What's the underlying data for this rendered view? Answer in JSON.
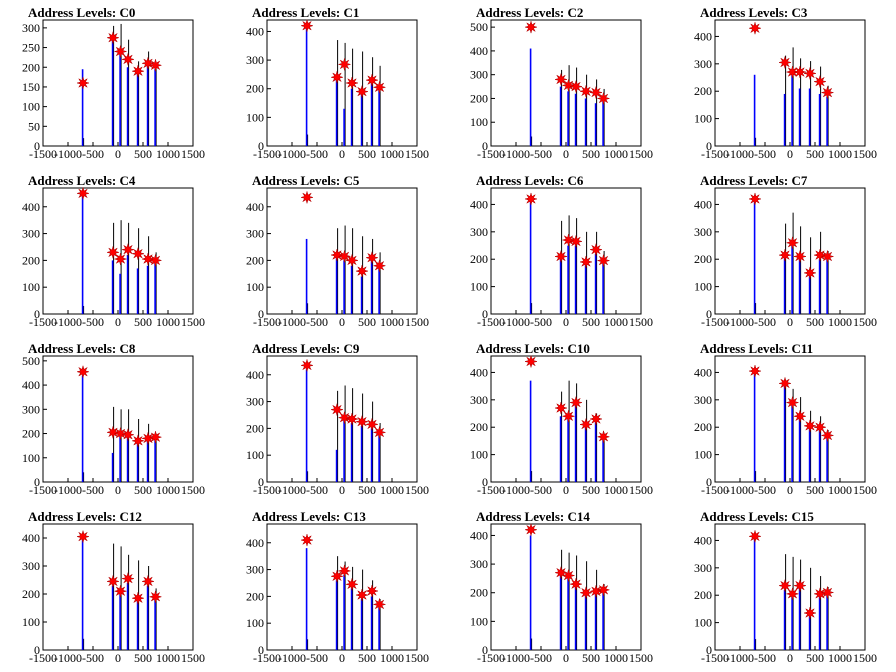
{
  "colors": {
    "histogram": "#0000ff",
    "overlay": "#000000",
    "peak_marker": "#ff0000"
  },
  "xlim": [
    -1500,
    1500
  ],
  "x_tick_labels": [
    "-1500",
    "-1000",
    "-500",
    "0",
    "500",
    "1000",
    "1500"
  ],
  "marker_x": [
    -700,
    -100,
    50,
    200,
    400,
    600,
    750
  ],
  "chart_data": [
    {
      "type": "bar",
      "title": "Address Levels: C0",
      "ylim": [
        0,
        320
      ],
      "y_ticks": [
        0,
        50,
        100,
        150,
        200,
        250,
        300
      ],
      "peaks_y": [
        160,
        275,
        240,
        220,
        190,
        210,
        205
      ],
      "blue_heights": [
        195,
        270,
        240,
        200,
        190,
        205,
        195
      ],
      "black_heights": [
        20,
        305,
        310,
        270,
        215,
        240,
        210
      ]
    },
    {
      "type": "bar",
      "title": "Address Levels: C1",
      "ylim": [
        0,
        440
      ],
      "y_ticks": [
        0,
        100,
        200,
        300,
        400
      ],
      "peaks_y": [
        420,
        240,
        285,
        220,
        190,
        230,
        205
      ],
      "blue_heights": [
        430,
        240,
        130,
        200,
        180,
        220,
        200
      ],
      "black_heights": [
        40,
        370,
        360,
        340,
        330,
        310,
        280
      ]
    },
    {
      "type": "bar",
      "title": "Address Levels: C2",
      "ylim": [
        0,
        530
      ],
      "y_ticks": [
        0,
        100,
        200,
        300,
        400,
        500
      ],
      "peaks_y": [
        500,
        280,
        255,
        250,
        230,
        225,
        200
      ],
      "blue_heights": [
        410,
        250,
        230,
        220,
        200,
        180,
        190
      ],
      "black_heights": [
        40,
        320,
        340,
        330,
        300,
        280,
        240
      ]
    },
    {
      "type": "bar",
      "title": "Address Levels: C3",
      "ylim": [
        0,
        460
      ],
      "y_ticks": [
        0,
        100,
        200,
        300,
        400
      ],
      "peaks_y": [
        430,
        305,
        270,
        270,
        265,
        235,
        195
      ],
      "blue_heights": [
        260,
        190,
        280,
        210,
        210,
        190,
        180
      ],
      "black_heights": [
        30,
        330,
        360,
        320,
        310,
        290,
        220
      ]
    },
    {
      "type": "bar",
      "title": "Address Levels: C4",
      "ylim": [
        0,
        470
      ],
      "y_ticks": [
        0,
        100,
        200,
        300,
        400
      ],
      "peaks_y": [
        450,
        230,
        205,
        240,
        225,
        205,
        200
      ],
      "blue_heights": [
        440,
        200,
        150,
        220,
        170,
        180,
        190
      ],
      "black_heights": [
        30,
        340,
        350,
        340,
        320,
        290,
        230
      ]
    },
    {
      "type": "bar",
      "title": "Address Levels: C5",
      "ylim": [
        0,
        470
      ],
      "y_ticks": [
        0,
        100,
        200,
        300,
        400
      ],
      "peaks_y": [
        435,
        220,
        215,
        200,
        160,
        210,
        180
      ],
      "blue_heights": [
        280,
        210,
        200,
        180,
        140,
        200,
        170
      ],
      "black_heights": [
        40,
        320,
        330,
        320,
        290,
        280,
        230
      ]
    },
    {
      "type": "bar",
      "title": "Address Levels: C6",
      "ylim": [
        0,
        460
      ],
      "y_ticks": [
        0,
        100,
        200,
        300,
        400
      ],
      "peaks_y": [
        420,
        210,
        270,
        265,
        190,
        235,
        195
      ],
      "blue_heights": [
        410,
        200,
        250,
        250,
        180,
        220,
        190
      ],
      "black_heights": [
        40,
        340,
        360,
        350,
        300,
        300,
        230
      ]
    },
    {
      "type": "bar",
      "title": "Address Levels: C7",
      "ylim": [
        0,
        460
      ],
      "y_ticks": [
        0,
        100,
        200,
        300,
        400
      ],
      "peaks_y": [
        420,
        215,
        260,
        210,
        150,
        215,
        210
      ],
      "blue_heights": [
        410,
        210,
        250,
        200,
        140,
        200,
        200
      ],
      "black_heights": [
        40,
        330,
        370,
        320,
        280,
        300,
        230
      ]
    },
    {
      "type": "bar",
      "title": "Address Levels: C8",
      "ylim": [
        0,
        520
      ],
      "y_ticks": [
        0,
        100,
        200,
        300,
        400,
        500
      ],
      "peaks_y": [
        455,
        205,
        200,
        195,
        170,
        180,
        185
      ],
      "blue_heights": [
        440,
        120,
        200,
        190,
        160,
        170,
        175
      ],
      "black_heights": [
        40,
        310,
        300,
        300,
        260,
        240,
        200
      ]
    },
    {
      "type": "bar",
      "title": "Address Levels: C9",
      "ylim": [
        0,
        470
      ],
      "y_ticks": [
        0,
        100,
        200,
        300,
        400
      ],
      "peaks_y": [
        435,
        270,
        240,
        235,
        225,
        215,
        185
      ],
      "blue_heights": [
        420,
        120,
        230,
        220,
        210,
        200,
        180
      ],
      "black_heights": [
        40,
        340,
        360,
        350,
        330,
        300,
        220
      ]
    },
    {
      "type": "bar",
      "title": "Address Levels: C10",
      "ylim": [
        0,
        460
      ],
      "y_ticks": [
        0,
        100,
        200,
        300,
        400
      ],
      "peaks_y": [
        440,
        270,
        240,
        290,
        210,
        230,
        165
      ],
      "blue_heights": [
        370,
        240,
        230,
        280,
        200,
        220,
        160
      ],
      "black_heights": [
        40,
        330,
        370,
        360,
        300,
        250,
        180
      ]
    },
    {
      "type": "bar",
      "title": "Address Levels: C11",
      "ylim": [
        0,
        460
      ],
      "y_ticks": [
        0,
        100,
        200,
        300,
        400
      ],
      "peaks_y": [
        405,
        360,
        290,
        240,
        205,
        200,
        170
      ],
      "blue_heights": [
        400,
        350,
        280,
        230,
        200,
        190,
        160
      ],
      "black_heights": [
        40,
        370,
        340,
        310,
        260,
        240,
        190
      ]
    },
    {
      "type": "bar",
      "title": "Address Levels: C12",
      "ylim": [
        0,
        450
      ],
      "y_ticks": [
        0,
        100,
        200,
        300,
        400
      ],
      "peaks_y": [
        405,
        245,
        210,
        255,
        185,
        245,
        190
      ],
      "blue_heights": [
        410,
        230,
        200,
        240,
        180,
        230,
        180
      ],
      "black_heights": [
        40,
        380,
        370,
        340,
        320,
        300,
        220
      ]
    },
    {
      "type": "bar",
      "title": "Address Levels: C13",
      "ylim": [
        0,
        470
      ],
      "y_ticks": [
        0,
        100,
        200,
        300,
        400
      ],
      "peaks_y": [
        410,
        275,
        295,
        245,
        205,
        220,
        170
      ],
      "blue_heights": [
        380,
        260,
        280,
        230,
        190,
        200,
        160
      ],
      "black_heights": [
        40,
        350,
        330,
        310,
        300,
        260,
        190
      ]
    },
    {
      "type": "bar",
      "title": "Address Levels: C14",
      "ylim": [
        0,
        440
      ],
      "y_ticks": [
        0,
        100,
        200,
        300,
        400
      ],
      "peaks_y": [
        420,
        270,
        260,
        230,
        200,
        205,
        210
      ],
      "blue_heights": [
        400,
        260,
        250,
        220,
        190,
        200,
        200
      ],
      "black_heights": [
        40,
        350,
        340,
        330,
        310,
        280,
        230
      ]
    },
    {
      "type": "bar",
      "title": "Address Levels: C15",
      "ylim": [
        0,
        460
      ],
      "y_ticks": [
        0,
        100,
        200,
        300,
        400
      ],
      "peaks_y": [
        415,
        235,
        205,
        235,
        135,
        205,
        210
      ],
      "blue_heights": [
        410,
        220,
        200,
        230,
        130,
        200,
        200
      ],
      "black_heights": [
        40,
        350,
        340,
        330,
        300,
        270,
        230
      ]
    }
  ]
}
